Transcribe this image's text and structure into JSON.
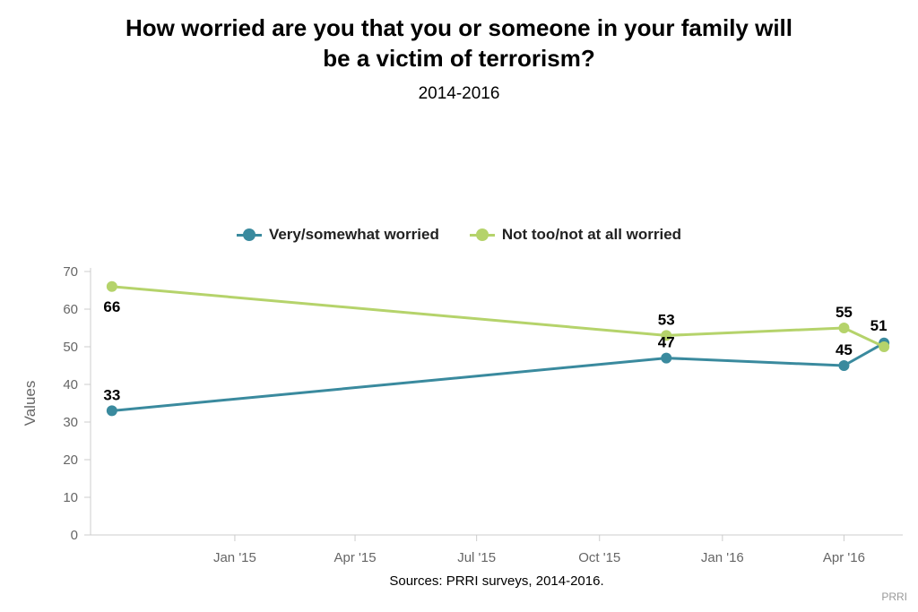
{
  "chart_data": {
    "type": "line",
    "title_lines": [
      "How worried are you that you or someone in your family will",
      "be a victim of terrorism?"
    ],
    "subtitle": "2014-2016",
    "ylabel": "Values",
    "ylim": [
      0,
      70
    ],
    "y_ticks": [
      "0",
      "10",
      "20",
      "30",
      "40",
      "50",
      "60",
      "70"
    ],
    "x_ticks": [
      "Jan '15",
      "Apr '15",
      "Jul '15",
      "Oct '15",
      "Jan '16",
      "Apr '16"
    ],
    "x_tick_dates": [
      "2015-01-01",
      "2015-04-01",
      "2015-07-01",
      "2015-10-01",
      "2016-01-01",
      "2016-04-01"
    ],
    "x_range": [
      "2014-09-15",
      "2016-05-15"
    ],
    "legend_position": "top-center",
    "grid": false,
    "series": [
      {
        "name": "Very/somewhat worried",
        "color": "#3a8a9e",
        "label_position": "above",
        "points": [
          {
            "x": "2014-10-01",
            "y": 33,
            "label": "33"
          },
          {
            "x": "2015-11-20",
            "y": 47,
            "label": "47"
          },
          {
            "x": "2016-04-01",
            "y": 45,
            "label": "45"
          },
          {
            "x": "2016-05-01",
            "y": 51,
            "label": "51"
          }
        ]
      },
      {
        "name": "Not too/not at all worried",
        "color": "#b5d36b",
        "label_position": "mixed",
        "points": [
          {
            "x": "2014-10-01",
            "y": 66,
            "label": "66"
          },
          {
            "x": "2015-11-20",
            "y": 53,
            "label": "53"
          },
          {
            "x": "2016-04-01",
            "y": 55,
            "label": "55"
          },
          {
            "x": "2016-05-01",
            "y": 50,
            "label": ""
          }
        ]
      }
    ]
  },
  "source_text": "Sources: PRRI surveys, 2014-2016.",
  "credit_text": "PRRI"
}
